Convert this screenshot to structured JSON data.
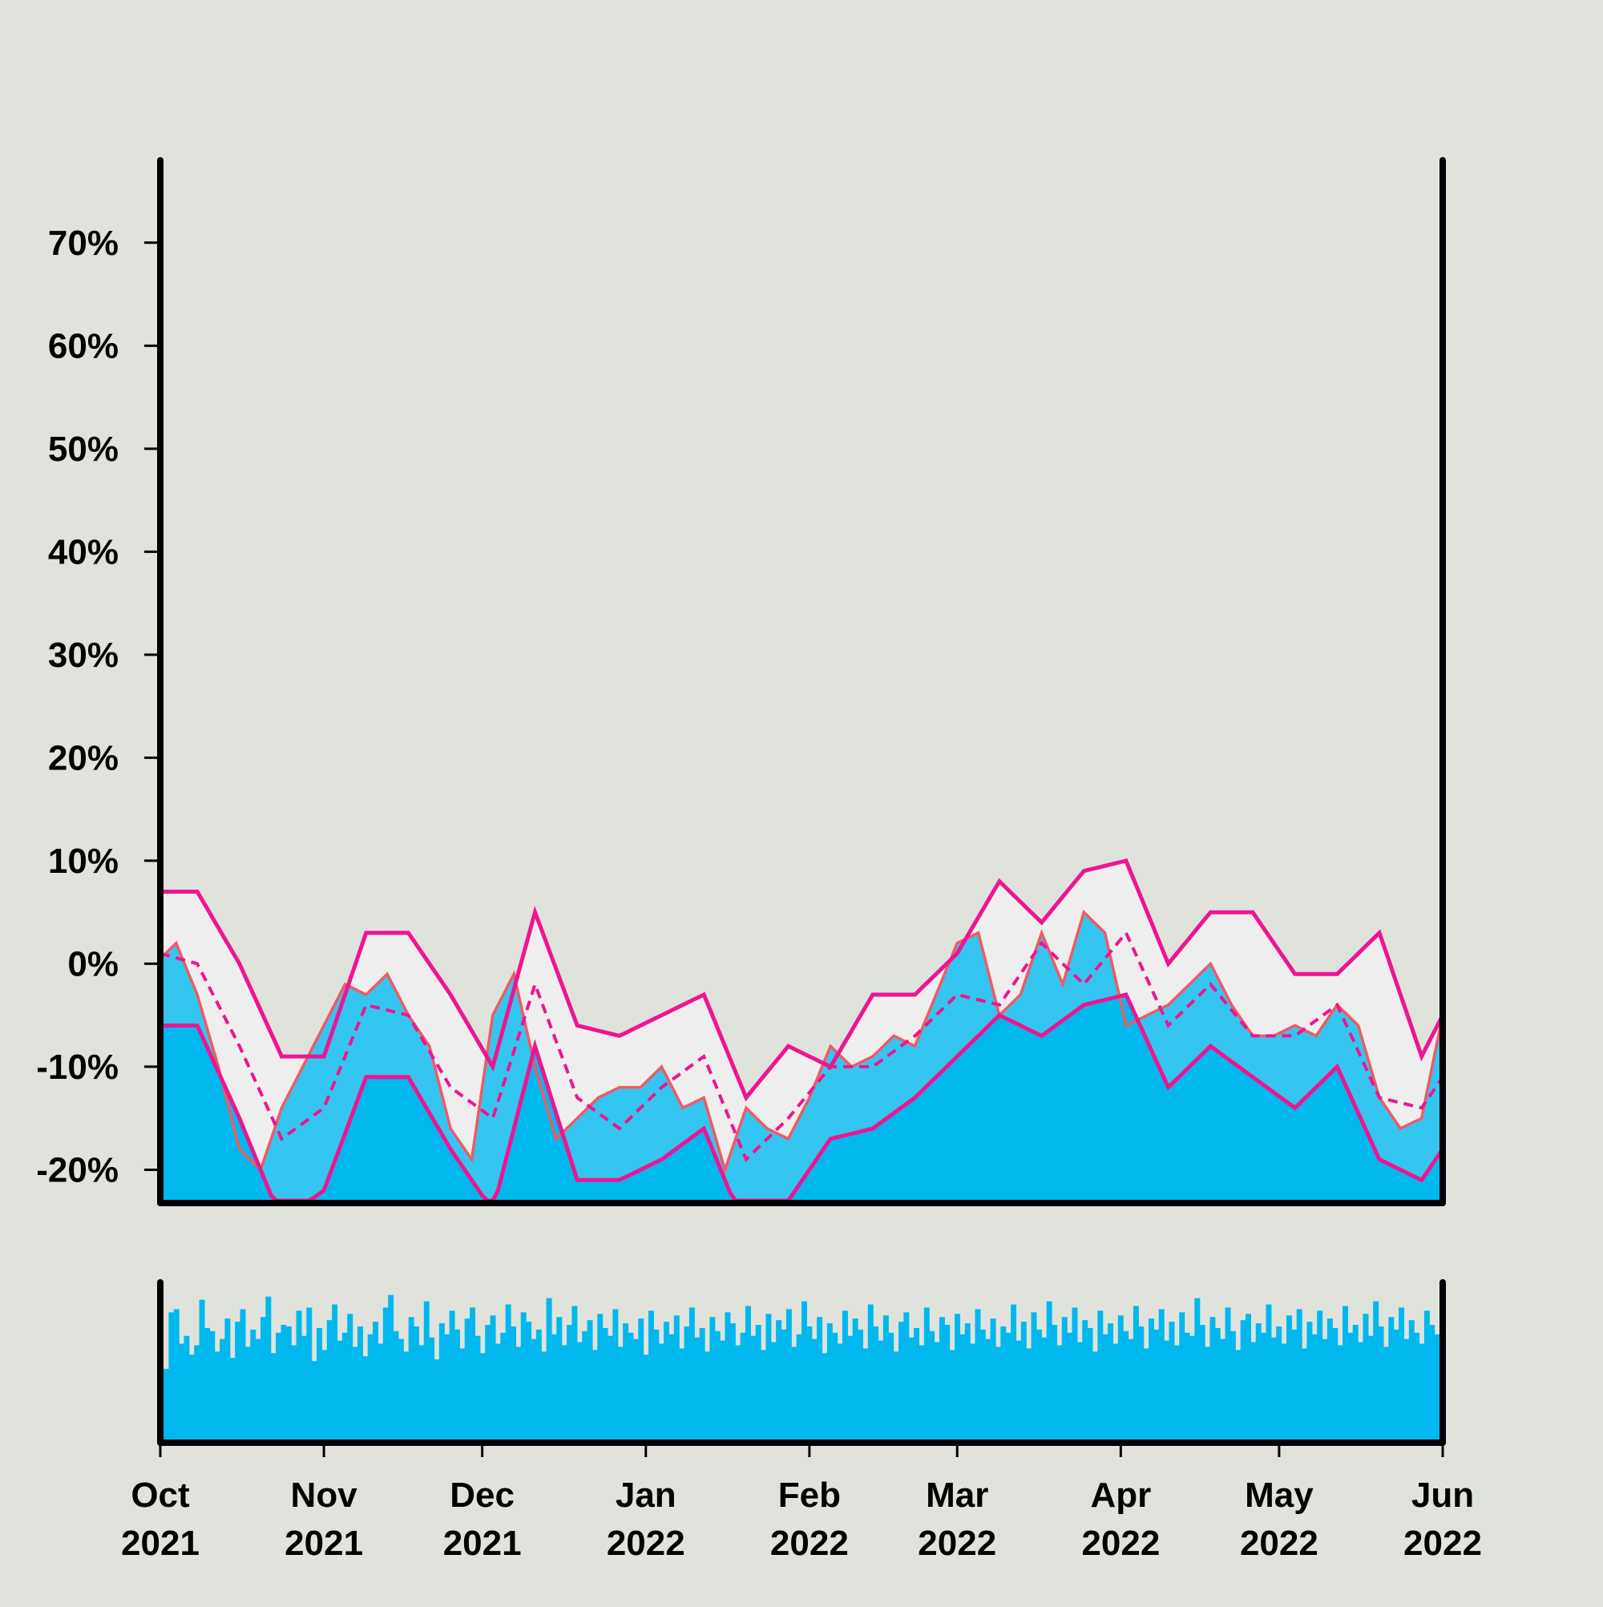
{
  "chart_data": {
    "type": "area",
    "x_range": [
      "2021-10-01",
      "2022-06-01"
    ],
    "ylim": [
      -23,
      78
    ],
    "yticks": [
      -20,
      -10,
      0,
      10,
      20,
      30,
      40,
      50,
      60,
      70
    ],
    "ytick_labels": [
      "-20%",
      "-10%",
      "0%",
      "10%",
      "20%",
      "30%",
      "40%",
      "50%",
      "60%",
      "70%"
    ],
    "xticks": [
      "2021-10-01",
      "2021-11-01",
      "2021-12-01",
      "2022-01-01",
      "2022-02-01",
      "2022-03-01",
      "2022-04-01",
      "2022-05-01",
      "2022-06-01"
    ],
    "xtick_labels": [
      [
        "Oct",
        "2021"
      ],
      [
        "Nov",
        "2021"
      ],
      [
        "Dec",
        "2021"
      ],
      [
        "Jan",
        "2022"
      ],
      [
        "Feb",
        "2022"
      ],
      [
        "Mar",
        "2022"
      ],
      [
        "Apr",
        "2022"
      ],
      [
        "May",
        "2022"
      ],
      [
        "Jun",
        "2022"
      ]
    ],
    "grid": false,
    "colors": {
      "background": "#dfe3dc",
      "area_dark": "#00b8ee",
      "area_light": "#34c6f0",
      "band_fill": "#eeeeee",
      "value_line": "#f05a64",
      "band_lines": "#ee1591",
      "volume": "#00b8ee"
    },
    "series": [
      {
        "role": "value",
        "x": [
          "2021-10-01",
          "2021-10-04",
          "2021-10-08",
          "2021-10-12",
          "2021-10-16",
          "2021-10-20",
          "2021-10-24",
          "2021-10-28",
          "2021-11-01",
          "2021-11-05",
          "2021-11-09",
          "2021-11-13",
          "2021-11-17",
          "2021-11-21",
          "2021-11-25",
          "2021-11-29",
          "2021-12-03",
          "2021-12-07",
          "2021-12-11",
          "2021-12-15",
          "2021-12-19",
          "2021-12-23",
          "2021-12-27",
          "2021-12-31",
          "2022-01-04",
          "2022-01-08",
          "2022-01-12",
          "2022-01-16",
          "2022-01-20",
          "2022-01-24",
          "2022-01-28",
          "2022-02-01",
          "2022-02-05",
          "2022-02-09",
          "2022-02-13",
          "2022-02-17",
          "2022-02-21",
          "2022-02-25",
          "2022-03-01",
          "2022-03-05",
          "2022-03-09",
          "2022-03-13",
          "2022-03-17",
          "2022-03-21",
          "2022-03-25",
          "2022-03-29",
          "2022-04-02",
          "2022-04-06",
          "2022-04-10",
          "2022-04-14",
          "2022-04-18",
          "2022-04-22",
          "2022-04-26",
          "2022-04-30",
          "2022-05-04",
          "2022-05-08",
          "2022-05-12",
          "2022-05-16",
          "2022-05-20",
          "2022-05-24",
          "2022-05-28",
          "2022-06-01"
        ],
        "values": [
          0.5,
          2,
          -3,
          -10,
          -18,
          -20,
          -14,
          -10,
          -6,
          -2,
          -3,
          -1,
          -5,
          -8,
          -16,
          -19,
          -5,
          -1,
          -10,
          -17,
          -15,
          -13,
          -12,
          -12,
          -10,
          -14,
          -13,
          -20,
          -14,
          -16,
          -17,
          -13,
          -8,
          -10,
          -9,
          -7,
          -8,
          -3,
          2,
          3,
          -5,
          -3,
          3,
          -2,
          5,
          3,
          -6,
          -5,
          -4,
          -2,
          0,
          -4,
          -7,
          -7,
          -6,
          -7,
          -4,
          -6,
          -13,
          -16,
          -15,
          -5
        ]
      },
      {
        "role": "mean",
        "x": [
          "2021-10-01",
          "2021-10-08",
          "2021-10-16",
          "2021-10-24",
          "2021-11-01",
          "2021-11-09",
          "2021-11-17",
          "2021-11-25",
          "2021-12-03",
          "2021-12-11",
          "2021-12-19",
          "2021-12-27",
          "2022-01-04",
          "2022-01-12",
          "2022-01-20",
          "2022-01-28",
          "2022-02-05",
          "2022-02-13",
          "2022-02-21",
          "2022-03-01",
          "2022-03-09",
          "2022-03-17",
          "2022-03-25",
          "2022-04-02",
          "2022-04-10",
          "2022-04-18",
          "2022-04-26",
          "2022-05-04",
          "2022-05-12",
          "2022-05-20",
          "2022-05-28",
          "2022-06-01"
        ],
        "values": [
          1,
          0,
          -8,
          -17,
          -14,
          -4,
          -5,
          -12,
          -15,
          -2,
          -13,
          -16,
          -12,
          -9,
          -19,
          -15,
          -10,
          -10,
          -7,
          -3,
          -4,
          2,
          -2,
          3,
          -6,
          -2,
          -7,
          -7,
          -4,
          -13,
          -14,
          -11
        ]
      },
      {
        "role": "upper_band",
        "x": [
          "2021-10-01",
          "2021-10-08",
          "2021-10-16",
          "2021-10-24",
          "2021-11-01",
          "2021-11-09",
          "2021-11-17",
          "2021-11-25",
          "2021-12-03",
          "2021-12-11",
          "2021-12-19",
          "2021-12-27",
          "2022-01-04",
          "2022-01-12",
          "2022-01-20",
          "2022-01-28",
          "2022-02-05",
          "2022-02-13",
          "2022-02-21",
          "2022-03-01",
          "2022-03-09",
          "2022-03-17",
          "2022-03-25",
          "2022-04-02",
          "2022-04-10",
          "2022-04-18",
          "2022-04-26",
          "2022-05-04",
          "2022-05-12",
          "2022-05-20",
          "2022-05-28",
          "2022-06-01"
        ],
        "values": [
          7,
          7,
          0,
          -9,
          -9,
          3,
          3,
          -3,
          -10,
          5,
          -6,
          -7,
          -5,
          -3,
          -13,
          -8,
          -10,
          -3,
          -3,
          1,
          8,
          4,
          9,
          10,
          0,
          5,
          5,
          -1,
          -1,
          3,
          -9,
          -5
        ]
      },
      {
        "role": "lower_band",
        "x": [
          "2021-10-01",
          "2021-10-08",
          "2021-10-16",
          "2021-10-24",
          "2021-11-01",
          "2021-11-09",
          "2021-11-17",
          "2021-11-25",
          "2021-12-03",
          "2021-12-11",
          "2021-12-19",
          "2021-12-27",
          "2022-01-04",
          "2022-01-12",
          "2022-01-20",
          "2022-01-28",
          "2022-02-05",
          "2022-02-13",
          "2022-02-21",
          "2022-03-01",
          "2022-03-09",
          "2022-03-17",
          "2022-03-25",
          "2022-04-02",
          "2022-04-10",
          "2022-04-18",
          "2022-04-26",
          "2022-05-04",
          "2022-05-12",
          "2022-05-20",
          "2022-05-28",
          "2022-06-01"
        ],
        "values": [
          -6,
          -6,
          -15,
          -25,
          -22,
          -11,
          -11,
          -18,
          -24,
          -8,
          -21,
          -21,
          -19,
          -16,
          -26,
          -23,
          -17,
          -16,
          -13,
          -9,
          -5,
          -7,
          -4,
          -3,
          -12,
          -8,
          -11,
          -14,
          -10,
          -19,
          -21,
          -18
        ]
      }
    ],
    "volume": {
      "x_range": [
        "2021-10-01",
        "2022-06-01"
      ],
      "values": [
        0.47,
        0.83,
        0.85,
        0.63,
        0.68,
        0.56,
        0.62,
        0.91,
        0.73,
        0.71,
        0.58,
        0.66,
        0.79,
        0.54,
        0.77,
        0.85,
        0.61,
        0.72,
        0.66,
        0.8,
        0.93,
        0.57,
        0.7,
        0.75,
        0.74,
        0.62,
        0.84,
        0.68,
        0.86,
        0.52,
        0.73,
        0.59,
        0.78,
        0.88,
        0.65,
        0.7,
        0.82,
        0.61,
        0.74,
        0.55,
        0.69,
        0.77,
        0.63,
        0.86,
        0.94,
        0.71,
        0.66,
        0.58,
        0.8,
        0.74,
        0.62,
        0.9,
        0.67,
        0.53,
        0.76,
        0.69,
        0.84,
        0.72,
        0.6,
        0.79,
        0.86,
        0.68,
        0.57,
        0.75,
        0.81,
        0.63,
        0.7,
        0.88,
        0.74,
        0.61,
        0.83,
        0.77,
        0.66,
        0.72,
        0.58,
        0.92,
        0.69,
        0.8,
        0.62,
        0.75,
        0.87,
        0.64,
        0.71,
        0.78,
        0.59,
        0.82,
        0.73,
        0.68,
        0.85,
        0.61,
        0.76,
        0.7,
        0.66,
        0.79,
        0.56,
        0.84,
        0.72,
        0.63,
        0.77,
        0.69,
        0.81,
        0.6,
        0.74,
        0.86,
        0.67,
        0.73,
        0.58,
        0.8,
        0.71,
        0.65,
        0.83,
        0.76,
        0.62,
        0.7,
        0.87,
        0.68,
        0.75,
        0.59,
        0.82,
        0.64,
        0.78,
        0.72,
        0.85,
        0.61,
        0.69,
        0.9,
        0.74,
        0.66,
        0.8,
        0.57,
        0.76,
        0.7,
        0.63,
        0.84,
        0.68,
        0.79,
        0.72,
        0.6,
        0.88,
        0.74,
        0.65,
        0.81,
        0.7,
        0.58,
        0.77,
        0.83,
        0.67,
        0.73,
        0.62,
        0.86,
        0.71,
        0.64,
        0.8,
        0.75,
        0.59,
        0.82,
        0.69,
        0.76,
        0.63,
        0.85,
        0.72,
        0.66,
        0.79,
        0.61,
        0.74,
        0.7,
        0.88,
        0.65,
        0.77,
        0.6,
        0.83,
        0.72,
        0.67,
        0.9,
        0.75,
        0.62,
        0.8,
        0.7,
        0.86,
        0.64,
        0.78,
        0.73,
        0.58,
        0.84,
        0.69,
        0.76,
        0.63,
        0.81,
        0.71,
        0.66,
        0.87,
        0.74,
        0.6,
        0.79,
        0.72,
        0.85,
        0.65,
        0.77,
        0.62,
        0.83,
        0.7,
        0.68,
        0.92,
        0.75,
        0.61,
        0.8,
        0.73,
        0.66,
        0.86,
        0.71,
        0.59,
        0.78,
        0.82,
        0.64,
        0.76,
        0.7,
        0.88,
        0.67,
        0.74,
        0.63,
        0.81,
        0.72,
        0.85,
        0.6,
        0.77,
        0.69,
        0.84,
        0.66,
        0.79,
        0.73,
        0.62,
        0.87,
        0.7,
        0.75,
        0.64,
        0.82,
        0.68,
        0.9,
        0.74,
        0.61,
        0.8,
        0.72,
        0.86,
        0.66,
        0.78,
        0.7,
        0.63,
        0.84,
        0.75,
        0.69
      ]
    }
  }
}
